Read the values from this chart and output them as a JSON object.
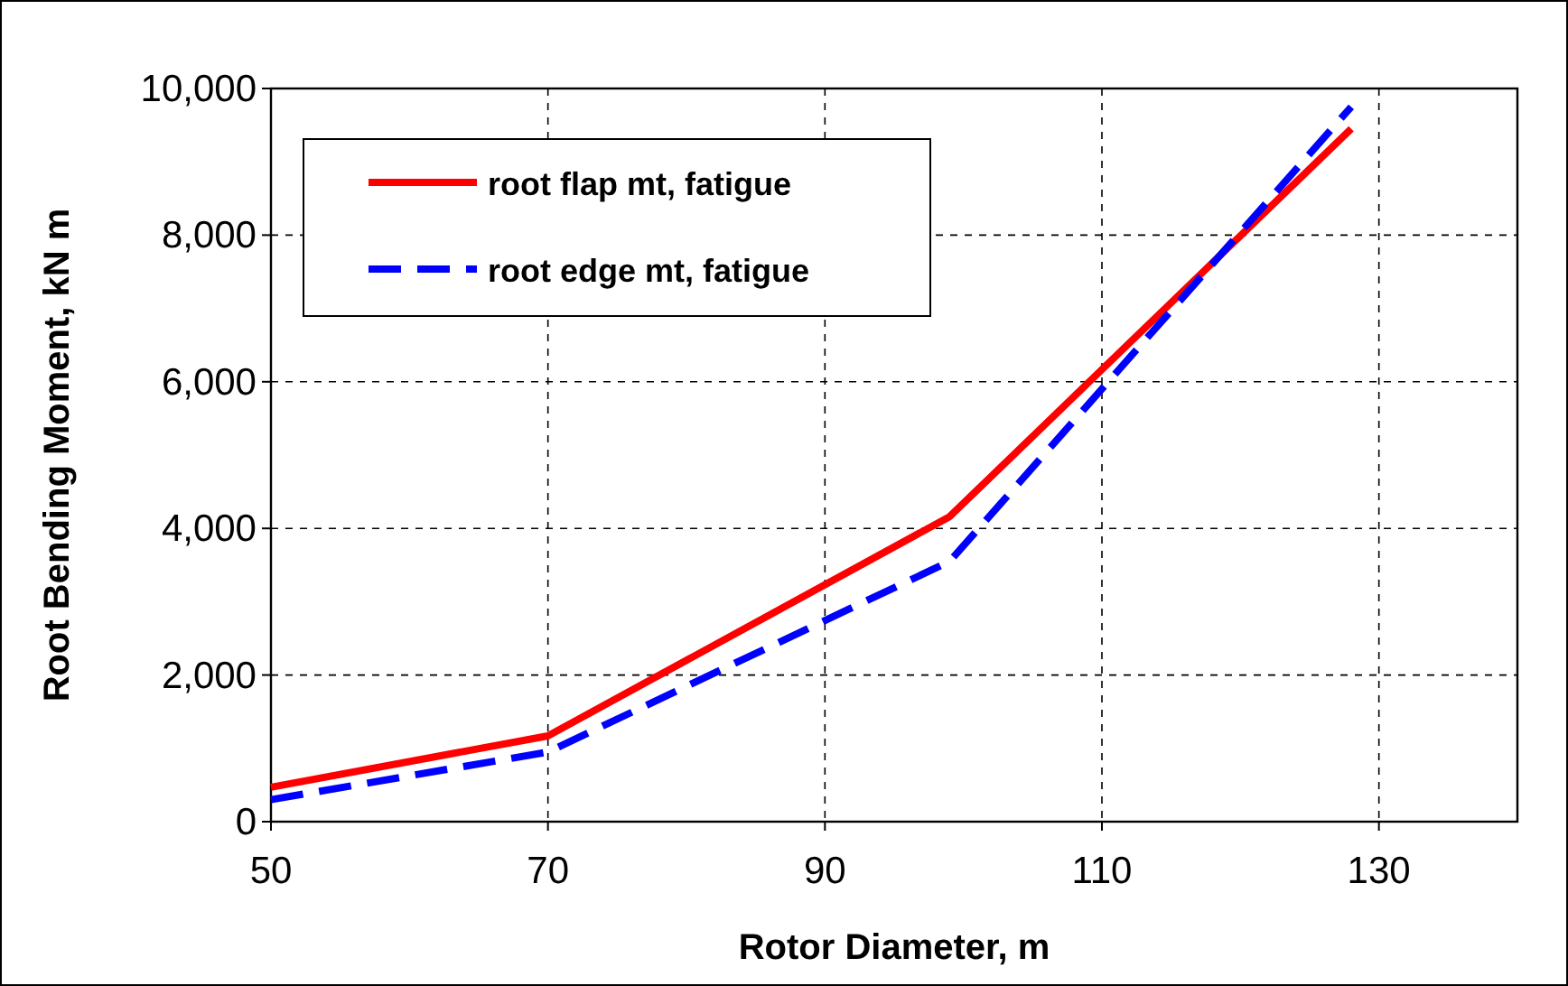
{
  "chart_data": {
    "type": "line",
    "xlabel": "Rotor Diameter, m",
    "ylabel": "Root Bending Moment, kN m",
    "x": [
      50,
      70,
      99,
      128
    ],
    "series": [
      {
        "name": "root flap mt, fatigue",
        "color": "#ff0000",
        "values": [
          470,
          1170,
          4160,
          9450
        ],
        "line_style": "solid"
      },
      {
        "name": "root edge mt, fatigue",
        "color": "#0000ff",
        "values": [
          300,
          950,
          3550,
          9750
        ],
        "line_style": "dashed"
      }
    ],
    "xlim": [
      50,
      140
    ],
    "xticks": [
      50,
      70,
      90,
      110,
      130
    ],
    "ylim": [
      0,
      10000
    ],
    "yticks": [
      {
        "value": 0,
        "label": "0"
      },
      {
        "value": 2000,
        "label": "2,000"
      },
      {
        "value": 4000,
        "label": "4,000"
      },
      {
        "value": 6000,
        "label": "6,000"
      },
      {
        "value": 8000,
        "label": "8,000"
      },
      {
        "value": 10000,
        "label": "10,000"
      }
    ],
    "grid": true,
    "legend": "top left"
  }
}
